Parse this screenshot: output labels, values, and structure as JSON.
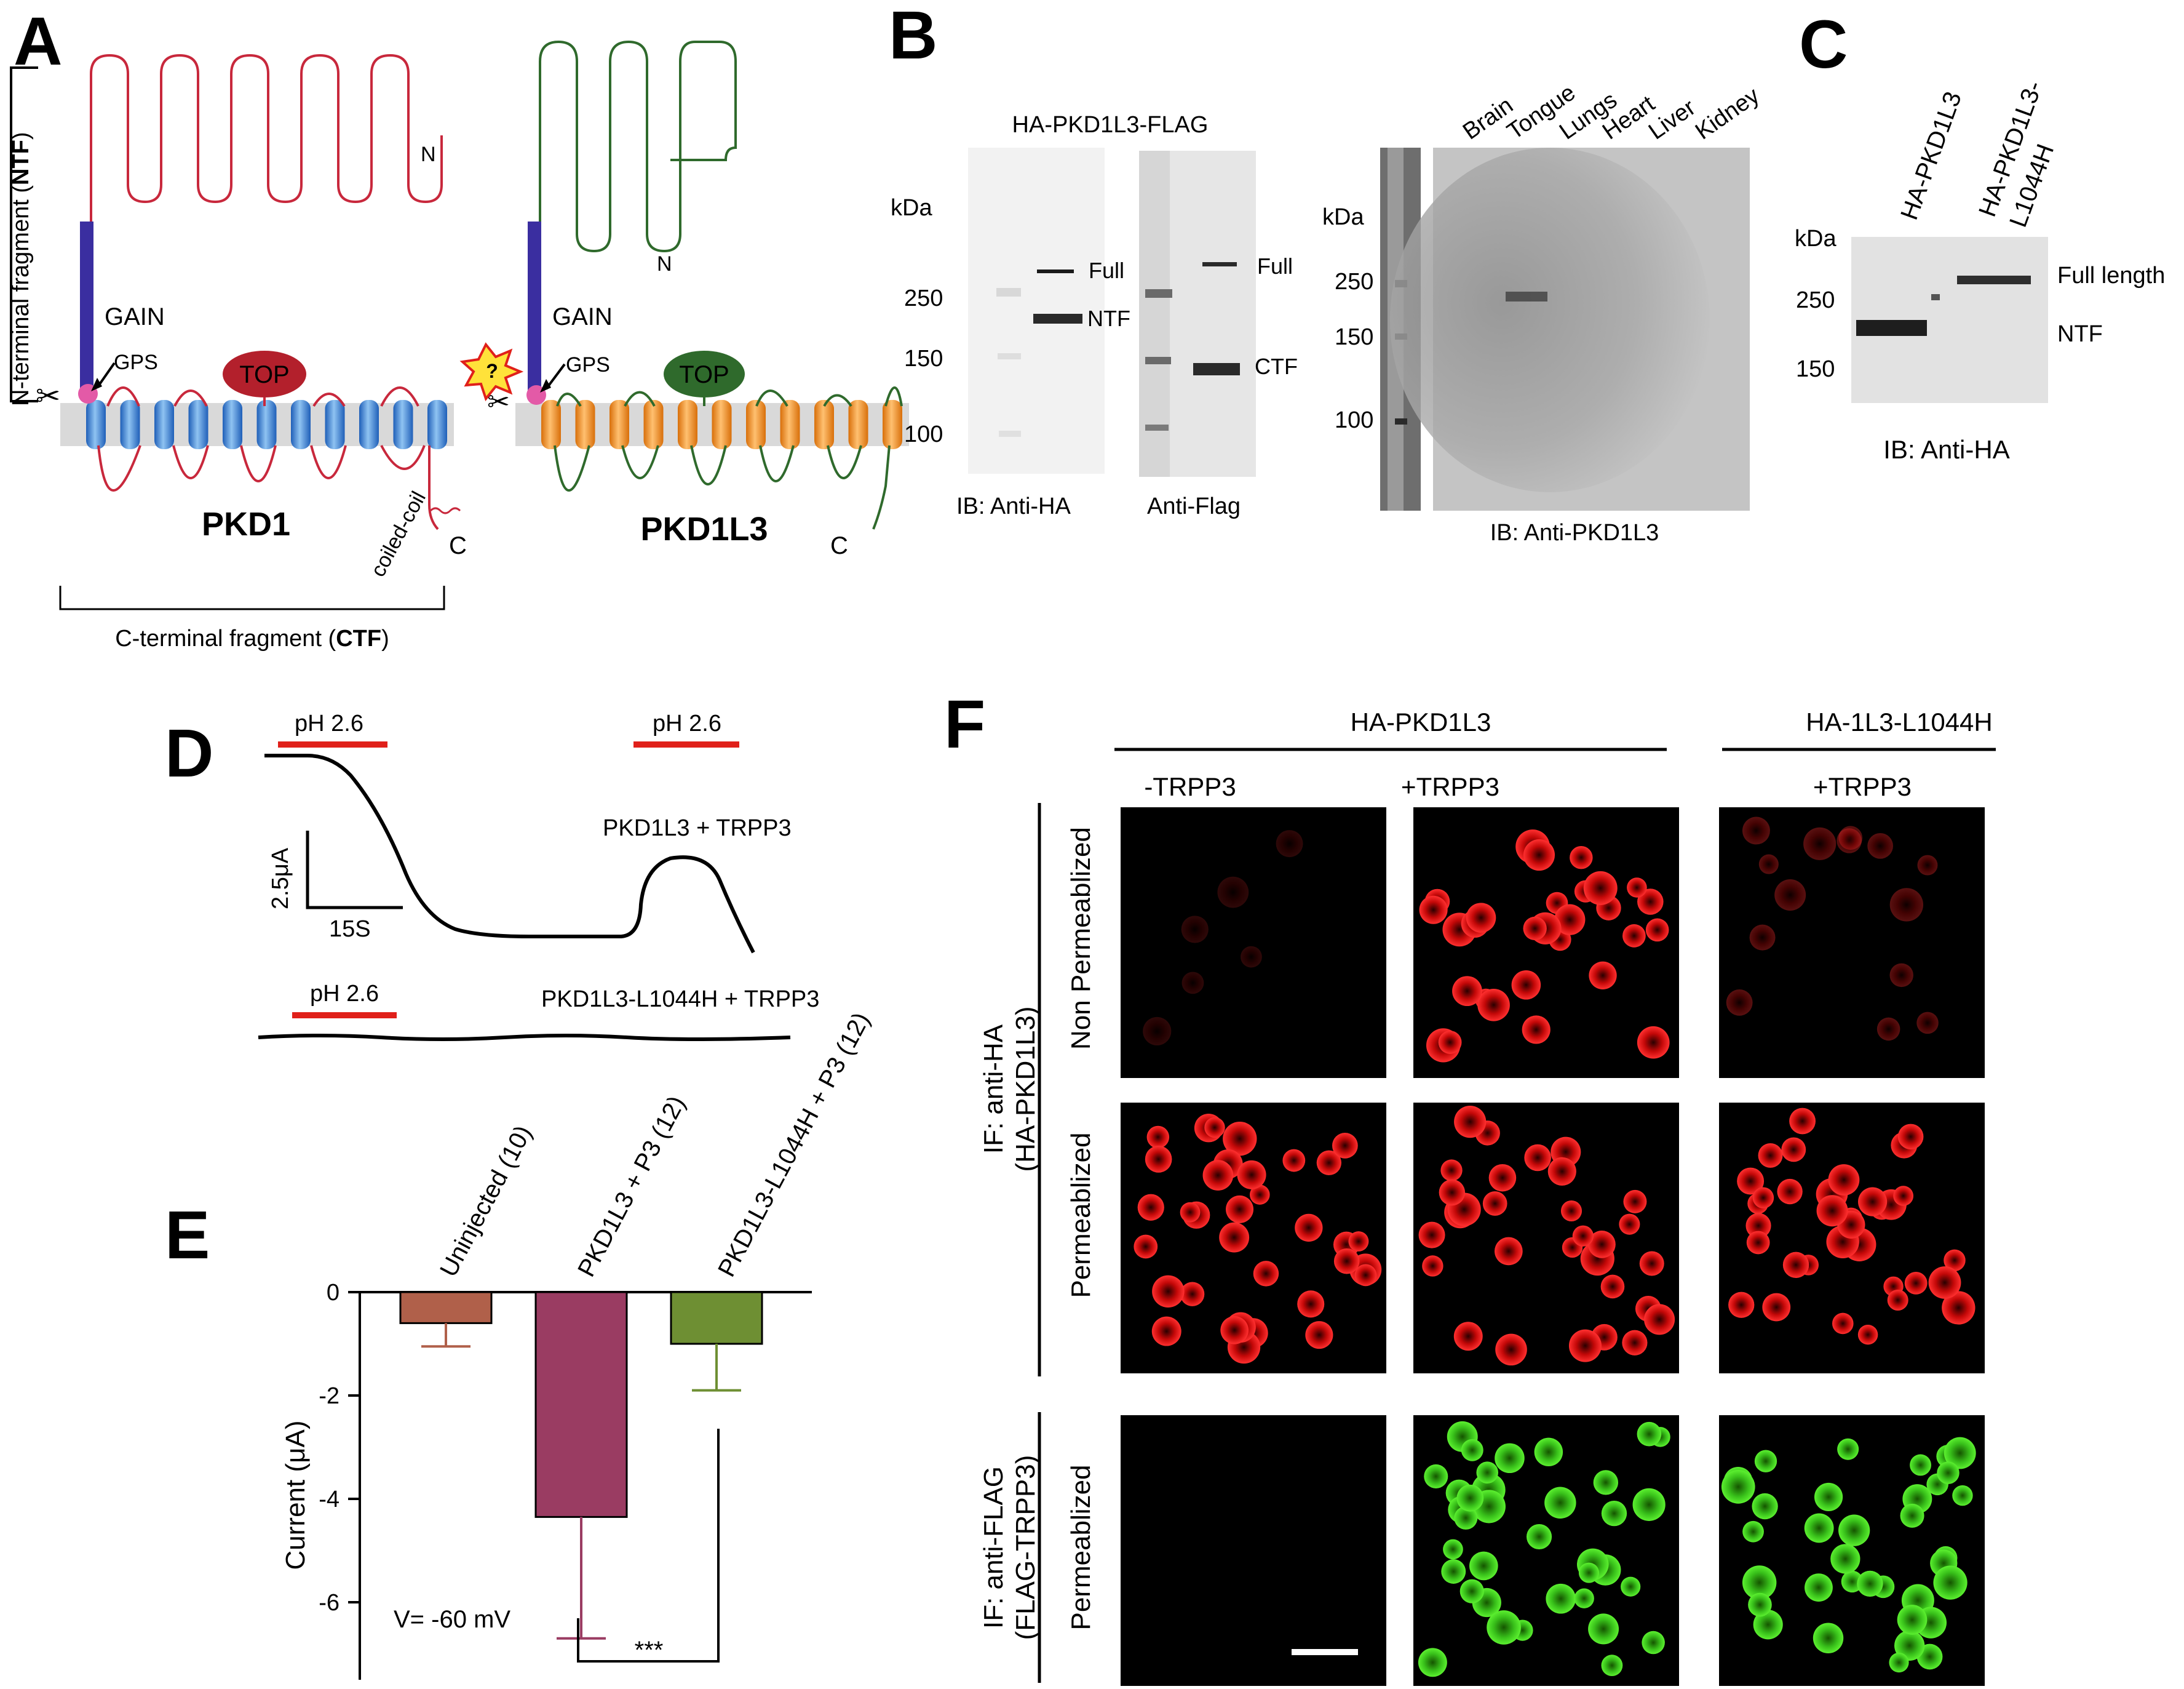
{
  "panels": {
    "a": {
      "letter": "A",
      "ntf_label_pre": "N-terminal fragment (",
      "ntf_label_bold": "NTF",
      "ntf_label_post": ")",
      "ctf_label_pre": "C-terminal fragment (",
      "ctf_label_bold": "CTF",
      "ctf_label_post": ")",
      "pkd1": {
        "name": "PKD1",
        "gain": "GAIN",
        "gps": "GPS",
        "top": "TOP",
        "n": "N",
        "c": "C",
        "coiled_coil": "coiled-coil"
      },
      "pkd1l3": {
        "name": "PKD1L3",
        "gain": "GAIN",
        "gps": "GPS",
        "top": "TOP",
        "n": "N",
        "c": "C",
        "question": "?"
      }
    },
    "b": {
      "letter": "B",
      "construct": "HA-PKD1L3-FLAG",
      "kda": "kDa",
      "markers_left": [
        "250",
        "150",
        "100"
      ],
      "bands_ha": [
        "Full",
        "NTF"
      ],
      "bands_flag": [
        "Full",
        "CTF"
      ],
      "ib_ha": "IB: Anti-HA",
      "anti_flag": "Anti-Flag",
      "tissue_kda": "kDa",
      "tissue_markers": [
        "250",
        "150",
        "100"
      ],
      "tissues": [
        "Brain",
        "Tongue",
        "Lungs",
        "Heart",
        "Liver",
        "Kidney"
      ],
      "ib_pkd1l3": "IB: Anti-PKD1L3"
    },
    "c": {
      "letter": "C",
      "lanes": [
        "HA-PKD1L3",
        "HA-PKD1L3-",
        "L1044H"
      ],
      "kda": "kDa",
      "markers": [
        "250",
        "150"
      ],
      "bands": [
        "Full length",
        "NTF"
      ],
      "ib": "IB: Anti-HA"
    },
    "d": {
      "letter": "D",
      "ph": "pH 2.6",
      "trace1": "PKD1L3 + TRPP3",
      "trace2": "PKD1L3-L1044H + TRPP3",
      "scale_y": "2.5μA",
      "scale_x": "15S"
    },
    "e": {
      "letter": "E",
      "voltage": "V= -60 mV",
      "significance": "***"
    },
    "f": {
      "letter": "F",
      "group1": "HA-PKD1L3",
      "group2": "HA-1L3-L1044H",
      "cols": [
        "-TRPP3",
        "+TRPP3",
        "+TRPP3"
      ],
      "row_nonperm": "Non Permeablized",
      "row_perm1": "Permeablized",
      "row_perm2": "Permeablized",
      "if_ha_1": "IF: anti-HA",
      "if_ha_2": "(HA-PKD1L3)",
      "if_flag_1": "IF: anti-FLAG",
      "if_flag_2": "(FLAG-TRPP3)"
    }
  },
  "chart_data": {
    "type": "bar",
    "categories": [
      "Uninjected (10)",
      "PKD1L3 + P3 (12)",
      "PKD1L3-L1044H + P3 (12)"
    ],
    "values": [
      -0.6,
      -4.35,
      -1.0
    ],
    "errors": [
      0.45,
      2.35,
      0.9
    ],
    "colors": [
      "#b0604a",
      "#9a3c62",
      "#6e8f33"
    ],
    "ylabel": "Current (μA)",
    "ylim": [
      -7.3,
      0
    ],
    "yticks": [
      0,
      -2,
      -4,
      -6
    ]
  }
}
